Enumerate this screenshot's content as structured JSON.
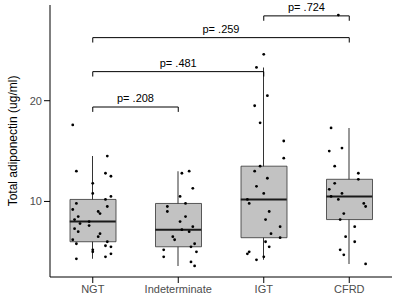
{
  "chart_data": {
    "type": "box",
    "categories": [
      "NGT",
      "Indeterminate",
      "IGT",
      "CFRD"
    ],
    "ylabel": "Total adiponectin (ug/ml)",
    "ylim": [
      2.5,
      29.5
    ],
    "yticks": [
      10,
      20
    ],
    "grid": false,
    "color": "#c2c2c2",
    "boxes": [
      {
        "whisker_low": 4.3,
        "q1": 6.0,
        "median": 8.0,
        "q3": 10.2,
        "whisker_high": 14.5
      },
      {
        "whisker_low": 3.6,
        "q1": 5.5,
        "median": 7.2,
        "q3": 9.8,
        "whisker_high": 13.0
      },
      {
        "whisker_low": 4.2,
        "q1": 6.4,
        "median": 10.2,
        "q3": 13.5,
        "whisker_high": 23.3
      },
      {
        "whisker_low": 3.8,
        "q1": 8.2,
        "median": 10.5,
        "q3": 12.2,
        "whisker_high": 17.3
      }
    ],
    "points": [
      [
        17.6,
        14.5,
        13.0,
        12.8,
        12.5,
        11.8,
        10.8,
        10.5,
        10.2,
        9.8,
        9.5,
        9.2,
        9.0,
        8.8,
        8.5,
        8.2,
        8.0,
        7.8,
        7.6,
        7.3,
        7.0,
        6.8,
        6.5,
        6.2,
        6.0,
        5.8,
        5.6,
        5.5,
        5.2,
        5.0,
        4.8,
        4.5,
        4.3
      ],
      [
        13.0,
        12.8,
        11.3,
        10.5,
        9.8,
        9.5,
        9.0,
        8.5,
        8.0,
        7.5,
        7.2,
        7.0,
        6.5,
        6.2,
        5.8,
        5.5,
        5.2,
        5.0,
        4.5,
        4.0,
        3.6
      ],
      [
        24.6,
        23.3,
        20.5,
        19.5,
        17.8,
        16.0,
        14.3,
        13.5,
        13.0,
        12.3,
        11.5,
        10.8,
        10.2,
        9.8,
        9.0,
        8.2,
        7.5,
        6.8,
        6.4,
        6.0,
        5.5,
        5.0,
        4.8,
        4.5,
        4.2
      ],
      [
        28.5,
        17.3,
        15.3,
        15.0,
        13.5,
        12.8,
        12.2,
        11.8,
        11.2,
        10.8,
        10.5,
        10.2,
        9.8,
        9.5,
        8.8,
        8.2,
        7.5,
        6.5,
        6.0,
        5.2,
        4.7,
        3.8
      ]
    ],
    "annotations": [
      {
        "from": "IGT",
        "to": "CFRD",
        "label": "p= .724"
      },
      {
        "from": "NGT",
        "to": "CFRD",
        "label": "p= .259"
      },
      {
        "from": "NGT",
        "to": "IGT",
        "label": "p= .481"
      },
      {
        "from": "NGT",
        "to": "Indeterminate",
        "label": "p= .208"
      }
    ]
  }
}
